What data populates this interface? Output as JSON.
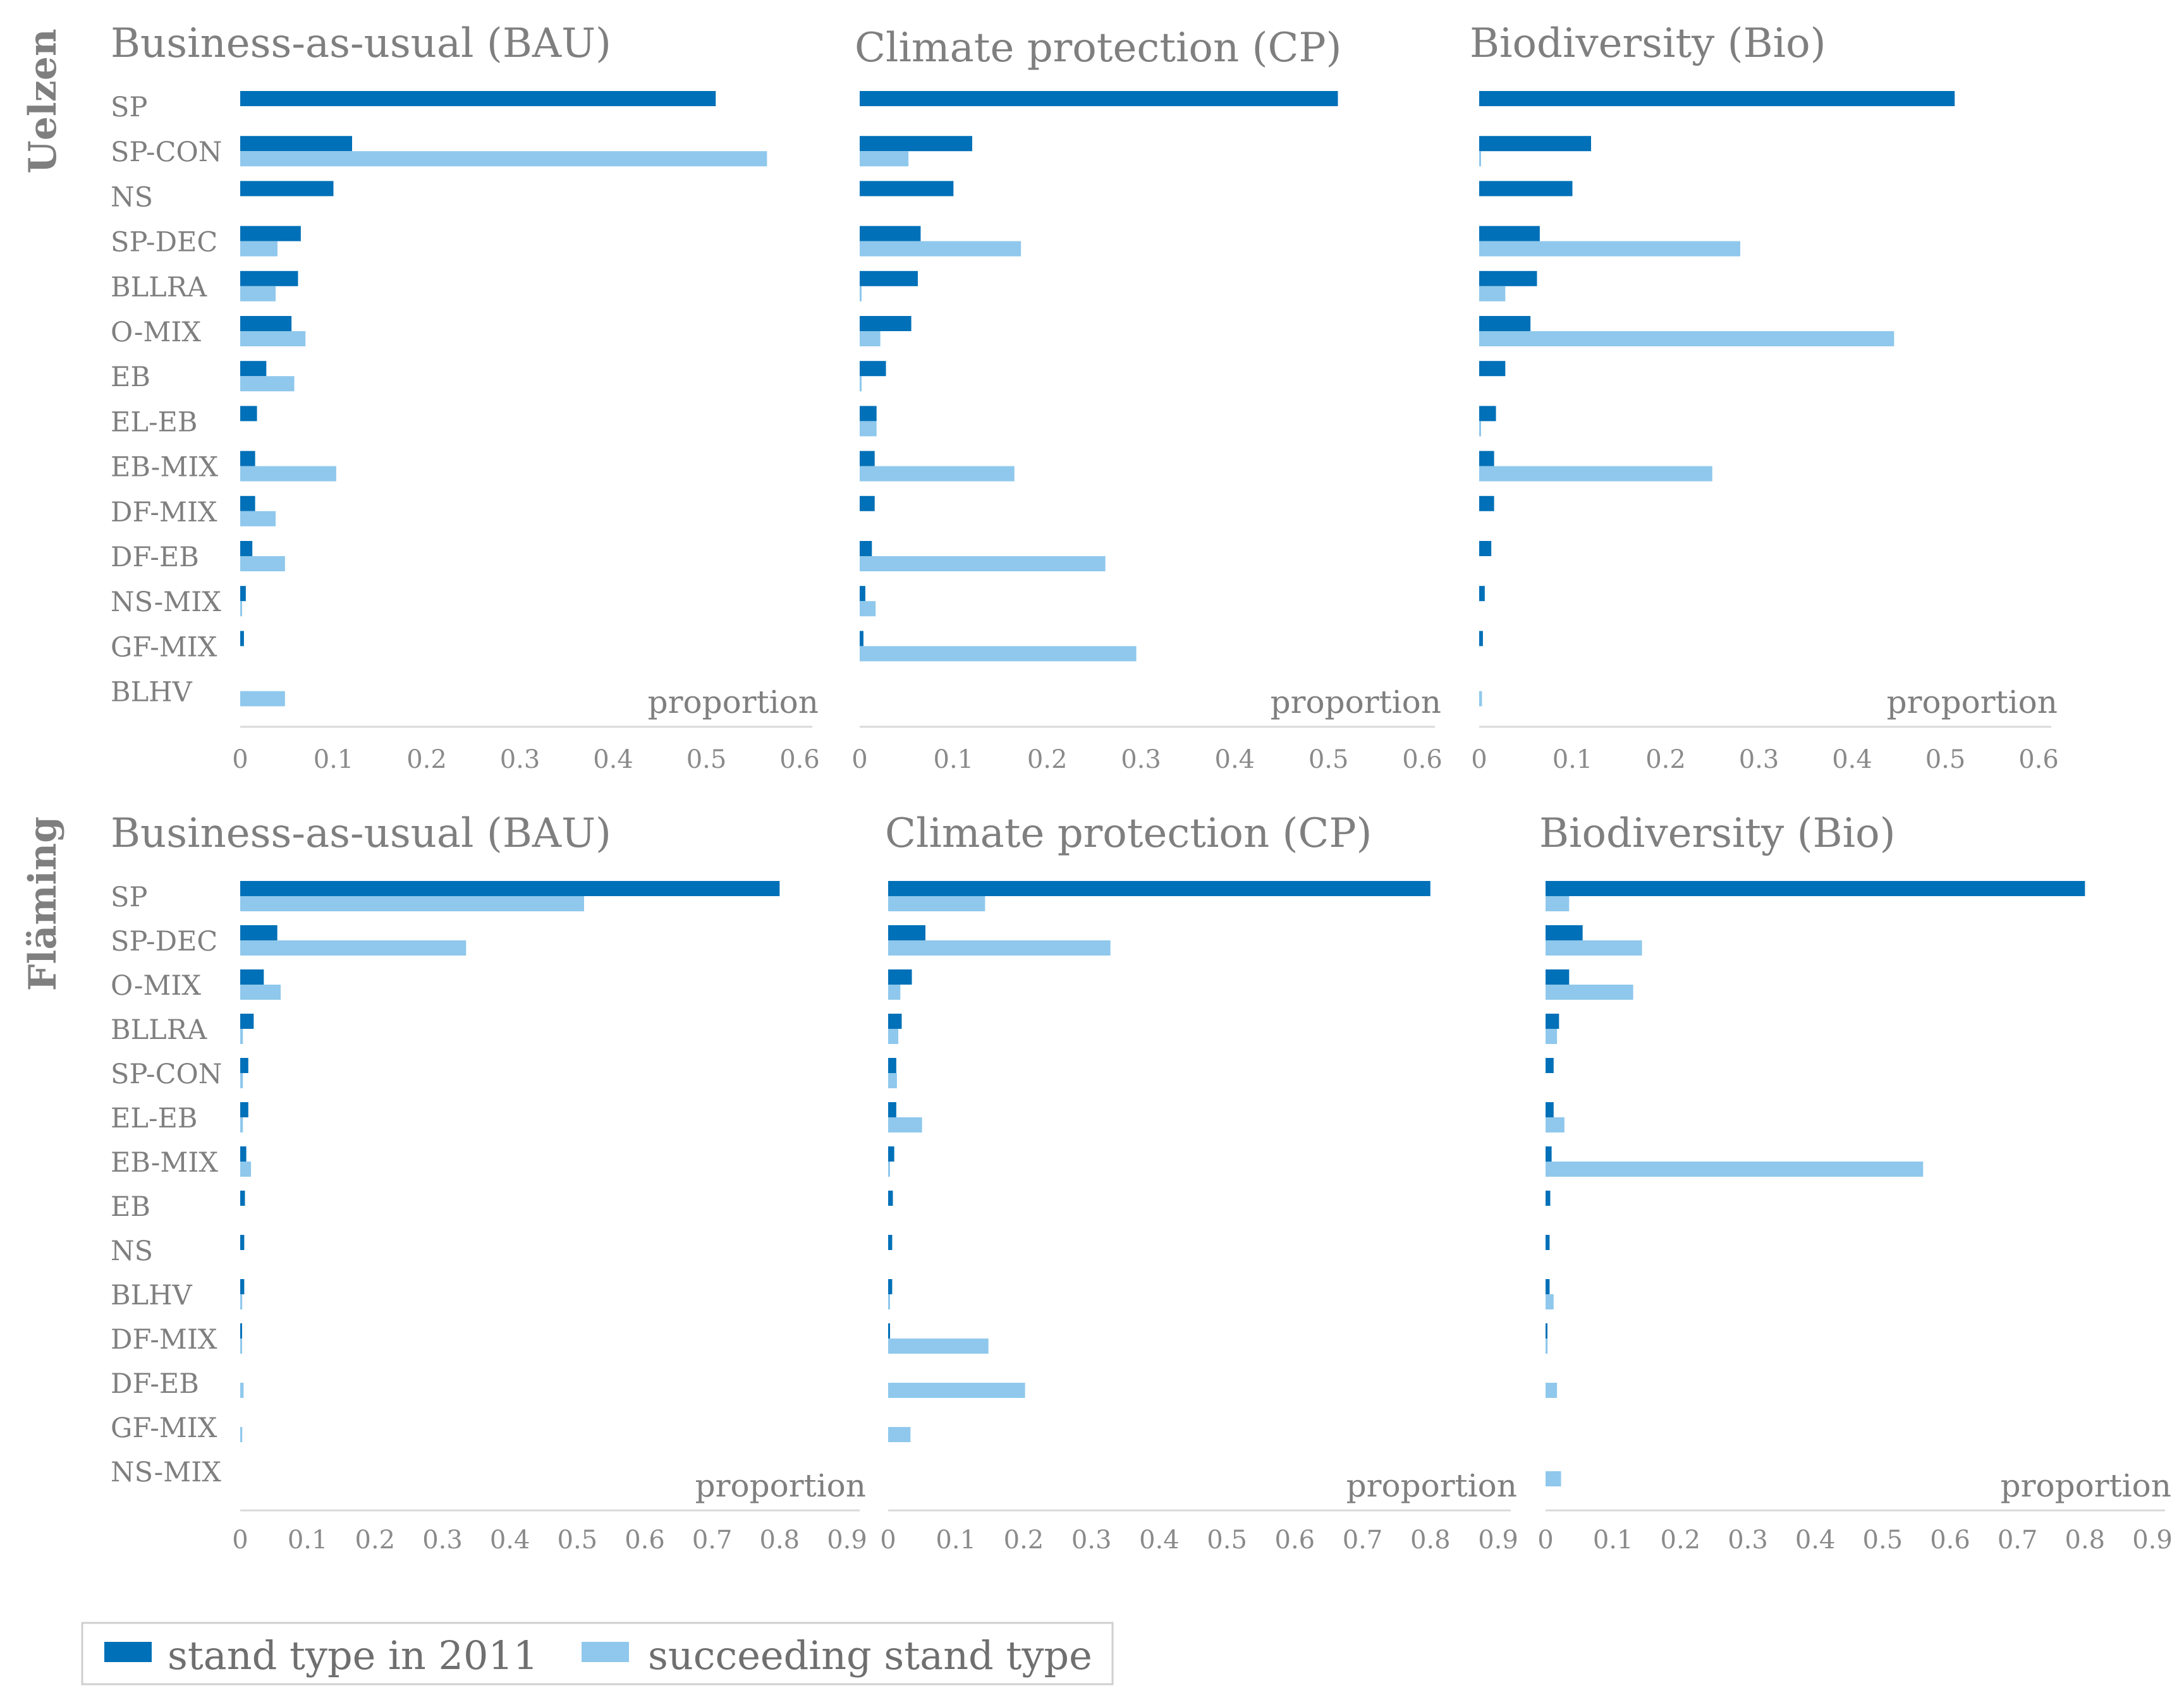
{
  "colors": {
    "stand_2011": "#0070b8",
    "succeeding": "#8fc8ec"
  },
  "rows": [
    {
      "label": "Uelzen"
    },
    {
      "label": "Fläming"
    }
  ],
  "legend": {
    "stand_2011": "stand type in 2011",
    "succeeding": "succeeding stand type"
  },
  "chart_data": [
    {
      "type": "bar",
      "orientation": "horizontal",
      "region": "Uelzen",
      "title": "Business-as-usual (BAU)",
      "xlabel": "proportion",
      "xlim": [
        0,
        0.6
      ],
      "xticks": [
        "0",
        "0.1",
        "0.2",
        "0.3",
        "0.4",
        "0.5",
        "0.6"
      ],
      "categories": [
        "SP",
        "SP-CON",
        "NS",
        "SP-DEC",
        "BLLRA",
        "O-MIX",
        "EB",
        "EL-EB",
        "EB-MIX",
        "DF-MIX",
        "DF-EB",
        "NS-MIX",
        "GF-MIX",
        "BLHV"
      ],
      "series": [
        {
          "name": "stand type in 2011",
          "values": [
            0.51,
            0.12,
            0.1,
            0.065,
            0.062,
            0.055,
            0.028,
            0.018,
            0.016,
            0.016,
            0.013,
            0.006,
            0.004,
            0
          ]
        },
        {
          "name": "succeeding stand type",
          "values": [
            0,
            0.565,
            0,
            0.04,
            0.038,
            0.07,
            0.058,
            0,
            0.103,
            0.038,
            0.048,
            0.002,
            0,
            0.048
          ]
        }
      ]
    },
    {
      "type": "bar",
      "orientation": "horizontal",
      "region": "Uelzen",
      "title": "Climate protection (CP)",
      "xlabel": "proportion",
      "xlim": [
        0,
        0.6
      ],
      "xticks": [
        "0",
        "0.1",
        "0.2",
        "0.3",
        "0.4",
        "0.5",
        "0.6"
      ],
      "categories": [
        "SP",
        "SP-CON",
        "NS",
        "SP-DEC",
        "BLLRA",
        "O-MIX",
        "EB",
        "EL-EB",
        "EB-MIX",
        "DF-MIX",
        "DF-EB",
        "NS-MIX",
        "GF-MIX",
        "BLHV"
      ],
      "series": [
        {
          "name": "stand type in 2011",
          "values": [
            0.51,
            0.12,
            0.1,
            0.065,
            0.062,
            0.055,
            0.028,
            0.018,
            0.016,
            0.016,
            0.013,
            0.006,
            0.004,
            0
          ]
        },
        {
          "name": "succeeding stand type",
          "values": [
            0,
            0.052,
            0,
            0.172,
            0.002,
            0.022,
            0.002,
            0.018,
            0.165,
            0,
            0.262,
            0.017,
            0.295,
            0
          ]
        }
      ]
    },
    {
      "type": "bar",
      "orientation": "horizontal",
      "region": "Uelzen",
      "title": "Biodiversity (Bio)",
      "xlabel": "proportion",
      "xlim": [
        0,
        0.6
      ],
      "xticks": [
        "0",
        "0.1",
        "0.2",
        "0.3",
        "0.4",
        "0.5",
        "0.6"
      ],
      "categories": [
        "SP",
        "SP-CON",
        "NS",
        "SP-DEC",
        "BLLRA",
        "O-MIX",
        "EB",
        "EL-EB",
        "EB-MIX",
        "DF-MIX",
        "DF-EB",
        "NS-MIX",
        "GF-MIX",
        "BLHV"
      ],
      "series": [
        {
          "name": "stand type in 2011",
          "values": [
            0.51,
            0.12,
            0.1,
            0.065,
            0.062,
            0.055,
            0.028,
            0.018,
            0.016,
            0.016,
            0.013,
            0.006,
            0.004,
            0
          ]
        },
        {
          "name": "succeeding stand type",
          "values": [
            0,
            0.002,
            0,
            0.28,
            0.028,
            0.445,
            0,
            0.002,
            0.25,
            0,
            0,
            0,
            0,
            0.003
          ]
        }
      ]
    },
    {
      "type": "bar",
      "orientation": "horizontal",
      "region": "Fläming",
      "title": "Business-as-usual (BAU)",
      "xlabel": "proportion",
      "xlim": [
        0,
        0.9
      ],
      "xticks": [
        "0",
        "0.1",
        "0.2",
        "0.3",
        "0.4",
        "0.5",
        "0.6",
        "0.7",
        "0.8",
        "0.9"
      ],
      "categories": [
        "SP",
        "SP-DEC",
        "O-MIX",
        "BLLRA",
        "SP-CON",
        "EL-EB",
        "EB-MIX",
        "EB",
        "NS",
        "BLHV",
        "DF-MIX",
        "DF-EB",
        "GF-MIX",
        "NS-MIX"
      ],
      "series": [
        {
          "name": "stand type in 2011",
          "values": [
            0.8,
            0.055,
            0.035,
            0.02,
            0.012,
            0.012,
            0.009,
            0.007,
            0.006,
            0.006,
            0.002,
            0,
            0,
            0
          ]
        },
        {
          "name": "succeeding stand type",
          "values": [
            0.51,
            0.335,
            0.06,
            0.004,
            0.004,
            0.004,
            0.016,
            0,
            0,
            0.003,
            0.002,
            0.005,
            0.003,
            0
          ]
        }
      ]
    },
    {
      "type": "bar",
      "orientation": "horizontal",
      "region": "Fläming",
      "title": "Climate protection (CP)",
      "xlabel": "proportion",
      "xlim": [
        0,
        0.9
      ],
      "xticks": [
        "0",
        "0.1",
        "0.2",
        "0.3",
        "0.4",
        "0.5",
        "0.6",
        "0.7",
        "0.8",
        "0.9"
      ],
      "categories": [
        "SP",
        "SP-DEC",
        "O-MIX",
        "BLLRA",
        "SP-CON",
        "EL-EB",
        "EB-MIX",
        "EB",
        "NS",
        "BLHV",
        "DF-MIX",
        "DF-EB",
        "GF-MIX",
        "NS-MIX"
      ],
      "series": [
        {
          "name": "stand type in 2011",
          "values": [
            0.8,
            0.055,
            0.035,
            0.02,
            0.012,
            0.012,
            0.009,
            0.007,
            0.006,
            0.006,
            0.002,
            0,
            0,
            0
          ]
        },
        {
          "name": "succeeding stand type",
          "values": [
            0.143,
            0.328,
            0.018,
            0.015,
            0.013,
            0.05,
            0.002,
            0,
            0,
            0.002,
            0.148,
            0.202,
            0.033,
            0
          ]
        }
      ]
    },
    {
      "type": "bar",
      "orientation": "horizontal",
      "region": "Fläming",
      "title": "Biodiversity (Bio)",
      "xlabel": "proportion",
      "xlim": [
        0,
        0.9
      ],
      "xticks": [
        "0",
        "0.1",
        "0.2",
        "0.3",
        "0.4",
        "0.5",
        "0.6",
        "0.7",
        "0.8",
        "0.9"
      ],
      "categories": [
        "SP",
        "SP-DEC",
        "O-MIX",
        "BLLRA",
        "SP-CON",
        "EL-EB",
        "EB-MIX",
        "EB",
        "NS",
        "BLHV",
        "DF-MIX",
        "DF-EB",
        "GF-MIX",
        "NS-MIX"
      ],
      "series": [
        {
          "name": "stand type in 2011",
          "values": [
            0.8,
            0.055,
            0.035,
            0.02,
            0.012,
            0.012,
            0.009,
            0.007,
            0.006,
            0.006,
            0.002,
            0,
            0,
            0
          ]
        },
        {
          "name": "succeeding stand type",
          "values": [
            0.035,
            0.143,
            0.13,
            0.017,
            0,
            0.028,
            0.56,
            0,
            0,
            0.012,
            0.003,
            0.017,
            0,
            0.023
          ]
        }
      ]
    }
  ]
}
